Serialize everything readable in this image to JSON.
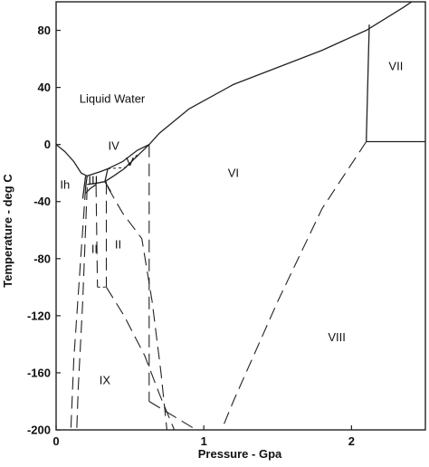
{
  "chart_data": {
    "type": "line",
    "title": "",
    "xlabel": "Pressure - Gpa",
    "ylabel": "Temperature - deg C",
    "xlim": [
      0,
      2.5
    ],
    "ylim": [
      -200,
      100
    ],
    "xticks": [
      0,
      1,
      2
    ],
    "xtick_labels": [
      "0",
      "1",
      "2"
    ],
    "yticks": [
      80,
      40,
      0,
      -40,
      -80,
      -120,
      -160,
      -200
    ],
    "ytick_labels": [
      "80",
      "40",
      "0",
      "-40",
      "-80",
      "-120",
      "-160",
      "-200"
    ],
    "grid": false,
    "legend": "none",
    "regions": [
      {
        "label": "Liquid Water",
        "x": 0.38,
        "y": 32
      },
      {
        "label": "Ih",
        "x": 0.06,
        "y": -28
      },
      {
        "label": "III",
        "x": 0.25,
        "y": -25
      },
      {
        "label": "IV",
        "x": 0.39,
        "y": -1
      },
      {
        "label": "V",
        "x": 0.5,
        "y": -12
      },
      {
        "label": "II",
        "x": 0.26,
        "y": -73
      },
      {
        "label": "II",
        "x": 0.42,
        "y": -70
      },
      {
        "label": "VI",
        "x": 1.2,
        "y": -20
      },
      {
        "label": "VII",
        "x": 2.3,
        "y": 55
      },
      {
        "label": "VIII",
        "x": 1.9,
        "y": -135
      },
      {
        "label": "IX",
        "x": 0.33,
        "y": -165
      }
    ],
    "series": [
      {
        "style": "solid",
        "points": [
          [
            0,
            0
          ],
          [
            0.06,
            -5
          ],
          [
            0.12,
            -12
          ],
          [
            0.17,
            -20
          ],
          [
            0.21,
            -22
          ]
        ]
      },
      {
        "style": "solid",
        "points": [
          [
            0.21,
            -22
          ],
          [
            0.3,
            -19
          ],
          [
            0.35,
            -17
          ],
          [
            0.45,
            -12
          ],
          [
            0.55,
            -4
          ],
          [
            0.63,
            0
          ],
          [
            0.7,
            8
          ],
          [
            0.9,
            25
          ],
          [
            1.2,
            42
          ],
          [
            1.5,
            54
          ],
          [
            1.8,
            66
          ],
          [
            2.1,
            80
          ],
          [
            2.35,
            96
          ],
          [
            2.55,
            110
          ]
        ]
      },
      {
        "style": "solid",
        "points": [
          [
            2.12,
            84
          ],
          [
            2.1,
            2
          ]
        ]
      },
      {
        "style": "solid",
        "points": [
          [
            2.1,
            2
          ],
          [
            2.55,
            2
          ]
        ]
      },
      {
        "style": "solid",
        "points": [
          [
            0.2,
            -22
          ],
          [
            0.19,
            -30
          ],
          [
            0.18,
            -38
          ]
        ]
      },
      {
        "style": "solid",
        "points": [
          [
            0.21,
            -22
          ],
          [
            0.2,
            -30
          ]
        ]
      },
      {
        "style": "solid",
        "points": [
          [
            0.35,
            -17
          ],
          [
            0.33,
            -26
          ]
        ]
      },
      {
        "style": "solid",
        "points": [
          [
            0.21,
            -28
          ],
          [
            0.28,
            -27
          ],
          [
            0.33,
            -26
          ]
        ]
      },
      {
        "style": "solid",
        "points": [
          [
            0.2,
            -34
          ],
          [
            0.23,
            -31
          ],
          [
            0.27,
            -28
          ]
        ]
      },
      {
        "style": "solid",
        "points": [
          [
            0.33,
            -26
          ],
          [
            0.39,
            -22
          ],
          [
            0.46,
            -17
          ],
          [
            0.55,
            -8
          ],
          [
            0.63,
            0
          ]
        ]
      },
      {
        "style": "solid",
        "points": [
          [
            0.33,
            -26
          ],
          [
            0.37,
            -33
          ]
        ]
      },
      {
        "style": "dashed",
        "points": [
          [
            0.2,
            -30
          ],
          [
            0.16,
            -90
          ],
          [
            0.12,
            -150
          ],
          [
            0.1,
            -200
          ]
        ]
      },
      {
        "style": "dashed",
        "points": [
          [
            0.21,
            -30
          ],
          [
            0.18,
            -110
          ],
          [
            0.15,
            -170
          ],
          [
            0.14,
            -200
          ]
        ]
      },
      {
        "style": "dashed",
        "points": [
          [
            0.27,
            -28
          ],
          [
            0.28,
            -100
          ]
        ]
      },
      {
        "style": "dashed",
        "points": [
          [
            0.34,
            -26
          ],
          [
            0.34,
            -100
          ]
        ]
      },
      {
        "style": "dashed",
        "points": [
          [
            0.35,
            -30
          ],
          [
            0.45,
            -48
          ],
          [
            0.58,
            -66
          ],
          [
            0.65,
            -110
          ],
          [
            0.71,
            -160
          ],
          [
            0.75,
            -200
          ]
        ]
      },
      {
        "style": "dashed",
        "points": [
          [
            0.34,
            -100
          ],
          [
            0.46,
            -120
          ],
          [
            0.6,
            -148
          ],
          [
            0.7,
            -175
          ],
          [
            0.8,
            -200
          ]
        ]
      },
      {
        "style": "dashed",
        "points": [
          [
            0.63,
            0
          ],
          [
            0.63,
            -180
          ]
        ]
      },
      {
        "style": "dashed",
        "points": [
          [
            2.1,
            2
          ],
          [
            1.8,
            -45
          ],
          [
            1.5,
            -110
          ],
          [
            1.2,
            -180
          ],
          [
            1.12,
            -200
          ]
        ]
      },
      {
        "style": "dashed",
        "points": [
          [
            0.63,
            -180
          ],
          [
            0.95,
            -200
          ]
        ]
      },
      {
        "style": "shortdash",
        "points": [
          [
            0.28,
            -100
          ],
          [
            0.34,
            -100
          ]
        ]
      },
      {
        "style": "shortdash",
        "points": [
          [
            0.35,
            -17
          ],
          [
            0.48,
            -16
          ],
          [
            0.55,
            -7
          ]
        ]
      }
    ]
  }
}
